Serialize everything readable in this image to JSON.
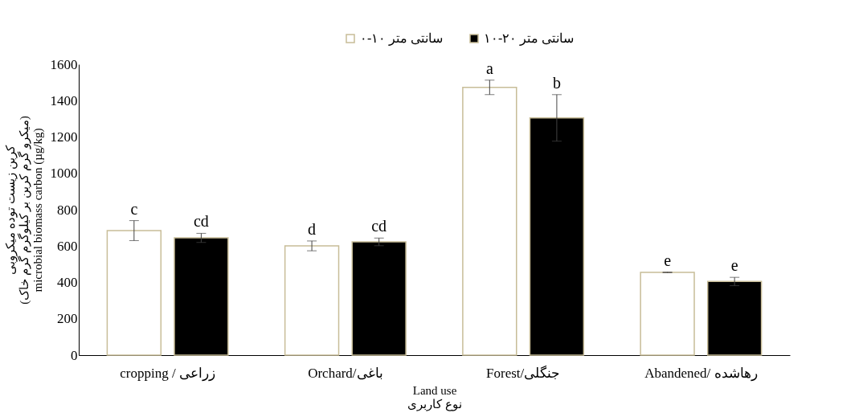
{
  "chart_data": {
    "type": "bar",
    "categories": [
      "cropping / زراعی",
      "Orchard/باغی",
      "Forest/جنگلی",
      "Abandened/ رهاشده"
    ],
    "series": [
      {
        "name": "۰-۱۰ سانتی متر",
        "color": "#ffffff",
        "values": [
          685,
          601,
          1473,
          455
        ],
        "errors": [
          55,
          27,
          40,
          2
        ]
      },
      {
        "name": "۱۰-۲۰ سانتی متر",
        "color": "#000000",
        "values": [
          645,
          623,
          1305,
          405
        ],
        "errors": [
          25,
          21,
          128,
          23
        ]
      }
    ],
    "xlabel": "Land use\nنوع کاربری",
    "ylabel": "کربن زیست توده میکروبی\n(میکرو گرم کربن بر کیلوگرم گرم خاک)\nmicrobial biomass carbon (µg/kg)",
    "ylim": [
      0,
      1600
    ],
    "yticks": [
      0,
      200,
      400,
      600,
      800,
      1000,
      1200,
      1400,
      1600
    ],
    "grid": false,
    "legend": "top",
    "annotations": [
      "c",
      "cd",
      "d",
      "cd",
      "a",
      "b",
      "e",
      "e"
    ]
  }
}
